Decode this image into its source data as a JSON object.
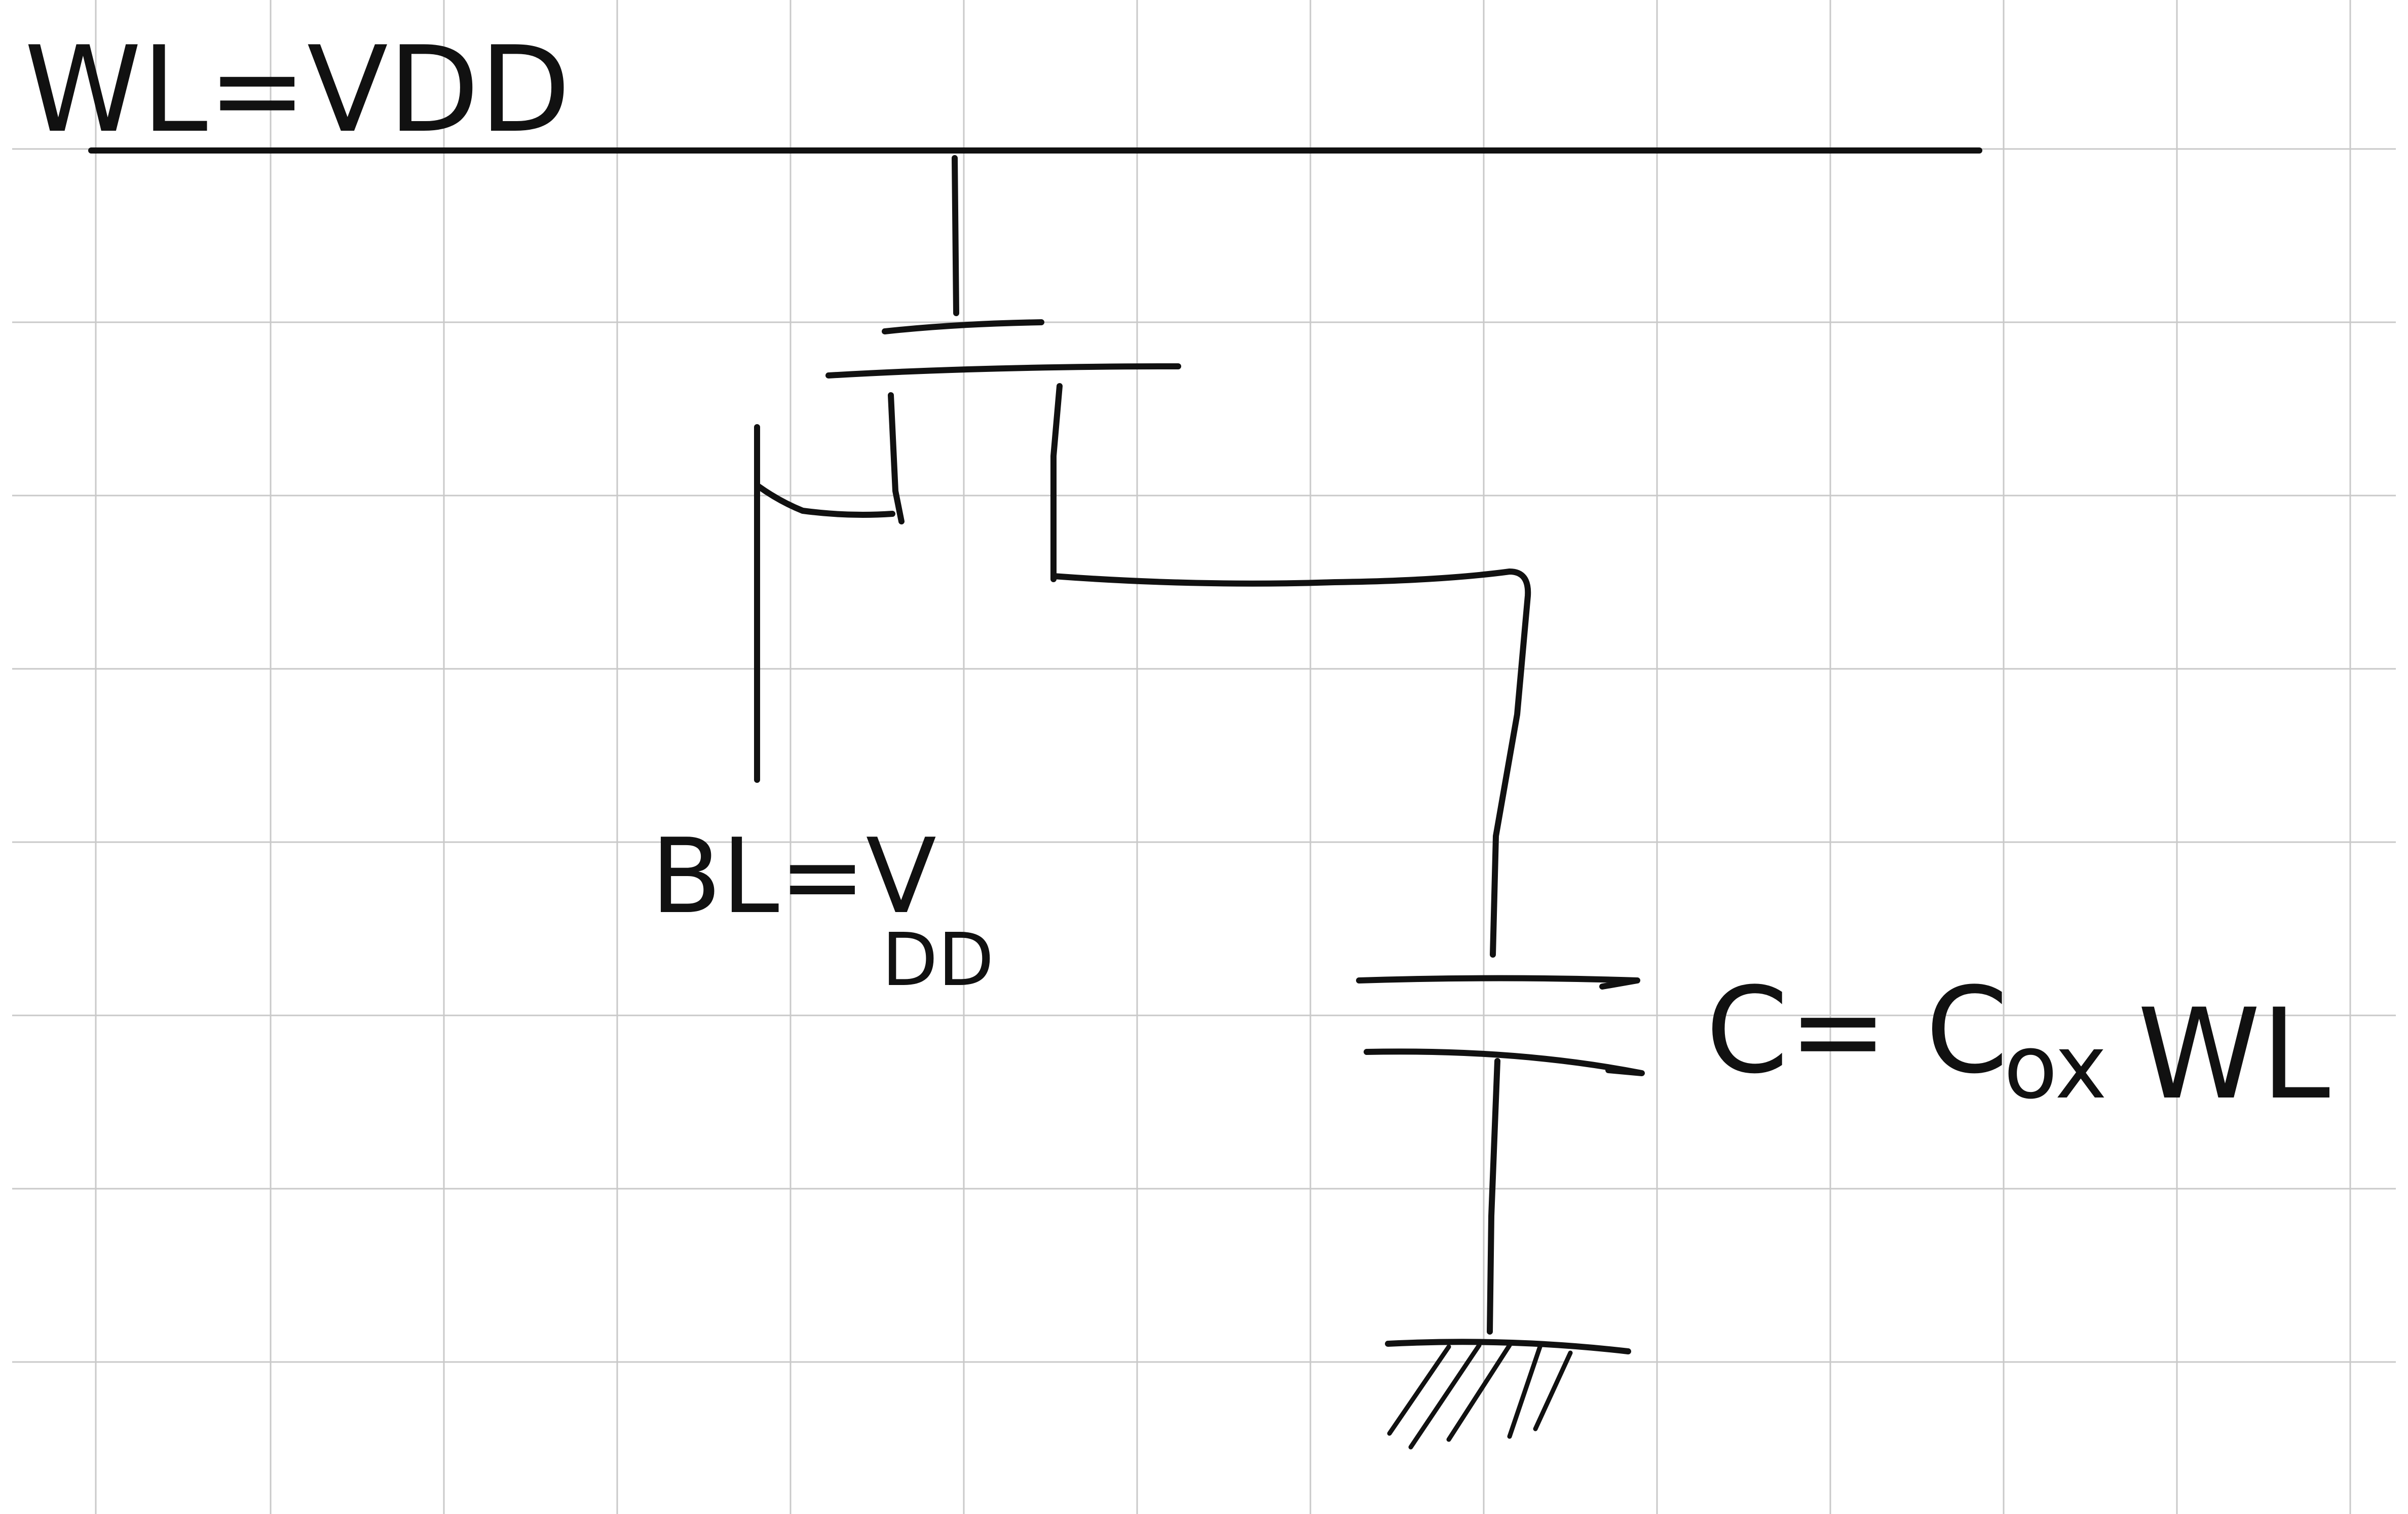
{
  "colors": {
    "background": "#ffffff",
    "grid": "#c9c9c9",
    "ink": "#111111"
  },
  "labels": {
    "word_line": "WL=VDD",
    "bit_line_main": "BL=V",
    "bit_line_subscript": "DD",
    "capacitance_main": "C= C",
    "capacitance_subscript": "ox",
    "capacitance_tail": "WL"
  }
}
